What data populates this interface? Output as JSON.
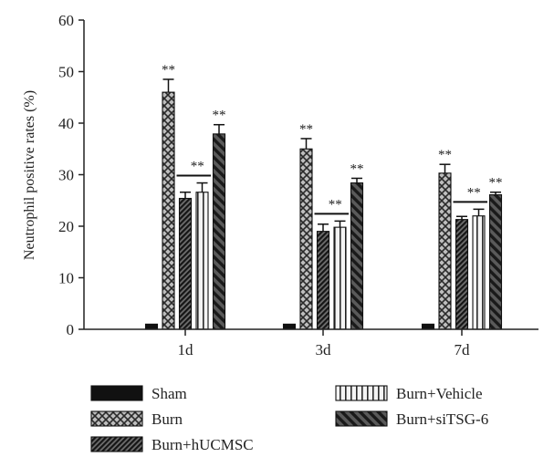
{
  "chart_data": {
    "type": "bar",
    "title": "",
    "xlabel": "",
    "ylabel": "Neutrophil positive rates (%)",
    "ylim": [
      0,
      60
    ],
    "yticks": [
      0,
      10,
      20,
      30,
      40,
      50,
      60
    ],
    "categories": [
      "1d",
      "3d",
      "7d"
    ],
    "series": [
      {
        "name": "Sham",
        "pattern": "solid",
        "values": [
          1.0,
          1.0,
          1.0
        ],
        "errors": [
          0,
          0,
          0
        ],
        "sig": [
          "",
          "",
          ""
        ]
      },
      {
        "name": "Burn",
        "pattern": "diamond",
        "values": [
          46.0,
          35.0,
          30.3
        ],
        "errors": [
          2.5,
          2.0,
          1.7
        ],
        "sig": [
          "**",
          "**",
          "**"
        ]
      },
      {
        "name": "Burn+hUCMSC",
        "pattern": "diag-fine",
        "values": [
          25.4,
          19.0,
          21.3
        ],
        "errors": [
          1.2,
          1.4,
          0.6
        ],
        "sig": [
          "",
          "",
          ""
        ]
      },
      {
        "name": "Burn+Vehicle",
        "pattern": "vertical",
        "values": [
          26.6,
          19.8,
          22.0
        ],
        "errors": [
          1.8,
          1.2,
          1.3
        ],
        "sig": [
          "",
          "",
          ""
        ]
      },
      {
        "name": "Burn+siTSG-6",
        "pattern": "diag-bold",
        "values": [
          37.9,
          28.4,
          26.1
        ],
        "errors": [
          1.8,
          0.9,
          0.5
        ],
        "sig": [
          "**",
          "**",
          "**"
        ]
      }
    ],
    "group_annotations": [
      {
        "category": "1d",
        "label": "**"
      },
      {
        "category": "3d",
        "label": "**"
      },
      {
        "category": "7d",
        "label": "**"
      }
    ],
    "legend_position": "bottom"
  }
}
